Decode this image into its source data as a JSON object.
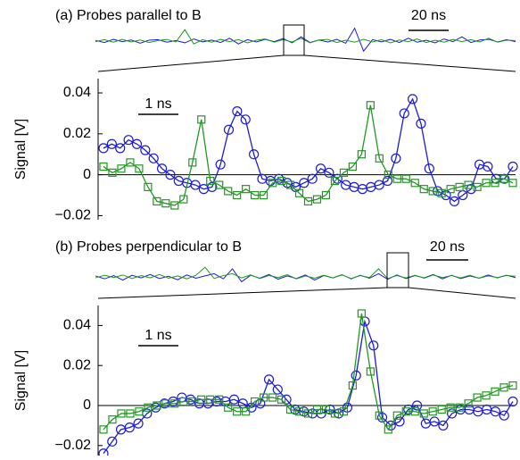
{
  "chart_data": [
    {
      "type": "line",
      "title": "(a) Probes parallel to B",
      "ylabel": "Signal [V]",
      "scale_bar_label": "1 ns",
      "ylim": [
        -0.022,
        0.047
      ],
      "yticks": [
        0.04,
        0.02,
        0,
        {
          "value": -0.02,
          "label": "−0.02"
        }
      ],
      "zero_line": true,
      "series": [
        {
          "color": "#1c1cd4",
          "marker": "circle",
          "values": [
            0.013,
            0.015,
            0.013,
            0.017,
            0.015,
            0.012,
            0.008,
            0.003,
            0.0,
            -0.003,
            -0.004,
            -0.005,
            -0.007,
            -0.006,
            0.005,
            0.022,
            0.031,
            0.027,
            0.01,
            -0.002,
            -0.003,
            -0.002,
            -0.004,
            -0.006,
            -0.004,
            -0.002,
            0.003,
            0.001,
            -0.002,
            -0.005,
            -0.006,
            -0.007,
            -0.006,
            -0.005,
            -0.003,
            0.008,
            0.03,
            0.037,
            0.025,
            0.003,
            -0.008,
            -0.01,
            -0.013,
            -0.01,
            -0.007,
            0.005,
            0.004,
            -0.002,
            -0.002,
            0.004
          ]
        },
        {
          "color": "#1f9a1f",
          "marker": "square",
          "values": [
            0.004,
            0.001,
            0.003,
            0.006,
            0.003,
            -0.006,
            -0.013,
            -0.014,
            -0.015,
            -0.012,
            0.006,
            0.027,
            -0.003,
            -0.005,
            -0.008,
            -0.01,
            -0.007,
            -0.01,
            -0.01,
            -0.004,
            -0.003,
            -0.005,
            -0.009,
            -0.013,
            -0.012,
            -0.01,
            -0.003,
            0.001,
            0.004,
            0.01,
            0.034,
            0.008,
            0.0,
            -0.002,
            -0.002,
            -0.004,
            -0.007,
            -0.008,
            -0.009,
            -0.007,
            -0.006,
            -0.005,
            -0.006,
            -0.004,
            -0.004,
            -0.002,
            -0.004
          ]
        }
      ],
      "overview": {
        "scale_bar_label": "20 ns",
        "ylim": [
          -0.1,
          0.1
        ],
        "series": [
          {
            "color": "#1c1cd4",
            "values": [
              0.005,
              -0.01,
              0.012,
              -0.004,
              0.008,
              -0.015,
              0.006,
              0.01,
              -0.008,
              0.004,
              -0.012,
              0.015,
              -0.005,
              0.007,
              -0.01,
              0.02,
              -0.02,
              0.01,
              -0.006,
              0.012,
              -0.004,
              0.018,
              -0.012,
              0.03,
              -0.01,
              0.008,
              -0.006,
              0.012,
              -0.015,
              0.09,
              -0.07,
              0.01,
              -0.005,
              0.012,
              -0.01,
              0.02,
              -0.008,
              0.006,
              -0.012,
              0.015,
              -0.004,
              0.03,
              -0.01,
              0.008,
              0.012,
              -0.006,
              0.01,
              -0.004
            ]
          },
          {
            "color": "#1f9a1f",
            "values": [
              -0.004,
              0.01,
              -0.008,
              0.012,
              -0.006,
              0.008,
              -0.01,
              0.004,
              0.012,
              -0.006,
              0.08,
              -0.02,
              0.01,
              -0.008,
              0.012,
              -0.004,
              0.01,
              -0.012,
              0.006,
              0.015,
              -0.008,
              0.01,
              -0.006,
              0.02,
              -0.012,
              0.008,
              0.012,
              -0.01,
              0.006,
              -0.008,
              0.012,
              -0.006,
              0.01,
              -0.012,
              0.008,
              -0.004,
              0.015,
              -0.01,
              0.006,
              -0.008,
              0.012,
              -0.004,
              0.01,
              -0.006,
              0.02,
              -0.008,
              0.006,
              0.004
            ]
          }
        ]
      }
    },
    {
      "type": "line",
      "title": "(b) Probes perpendicular to B",
      "ylabel": "Signal [V]",
      "scale_bar_label": "1 ns",
      "ylim": [
        -0.025,
        0.05
      ],
      "yticks": [
        0.04,
        0.02,
        0,
        {
          "value": -0.02,
          "label": "−0.02"
        }
      ],
      "zero_line": true,
      "series": [
        {
          "color": "#1c1cd4",
          "marker": "circle",
          "values": [
            -0.024,
            -0.018,
            -0.012,
            -0.011,
            -0.009,
            -0.004,
            -0.001,
            0.001,
            0.002,
            0.004,
            0.003,
            0.001,
            0.001,
            0.002,
            0.002,
            0.003,
            0.001,
            -0.001,
            0.001,
            0.013,
            0.008,
            0.003,
            -0.002,
            -0.003,
            -0.004,
            -0.004,
            -0.002,
            -0.004,
            -0.001,
            0.015,
            0.042,
            0.03,
            -0.006,
            -0.01,
            -0.008,
            -0.002,
            0.0,
            -0.009,
            -0.008,
            -0.01,
            -0.004,
            -0.002,
            -0.002,
            -0.003,
            -0.002,
            -0.003,
            -0.005,
            0.002
          ]
        },
        {
          "color": "#1f9a1f",
          "marker": "square",
          "values": [
            -0.012,
            -0.007,
            -0.004,
            -0.004,
            -0.003,
            -0.001,
            0.0,
            0.001,
            0.001,
            0.002,
            0.002,
            0.003,
            0.003,
            0.003,
            -0.001,
            -0.003,
            -0.003,
            0.002,
            0.004,
            0.004,
            0.003,
            -0.002,
            -0.003,
            -0.004,
            -0.002,
            -0.002,
            -0.004,
            -0.003,
            0.01,
            0.046,
            0.017,
            -0.005,
            -0.012,
            -0.005,
            -0.003,
            -0.003,
            -0.004,
            -0.003,
            -0.002,
            -0.001,
            -0.001,
            0.001,
            0.004,
            0.005,
            0.007,
            0.009,
            0.01
          ]
        }
      ],
      "overview": {
        "scale_bar_label": "20 ns",
        "ylim": [
          -0.1,
          0.1
        ],
        "series": [
          {
            "color": "#1c1cd4",
            "values": [
              0.006,
              -0.012,
              0.008,
              -0.02,
              0.01,
              -0.006,
              0.015,
              -0.01,
              0.004,
              -0.018,
              0.012,
              -0.008,
              0.006,
              0.02,
              -0.012,
              0.05,
              -0.03,
              0.01,
              -0.008,
              0.015,
              -0.014,
              0.006,
              -0.01,
              0.012,
              -0.02,
              0.008,
              -0.006,
              0.014,
              -0.012,
              0.01,
              -0.008,
              0.02,
              -0.015,
              0.012,
              -0.01,
              0.008,
              -0.006,
              0.015,
              -0.012,
              0.01,
              -0.01,
              0.006,
              -0.008,
              0.012,
              -0.006,
              0.01,
              -0.004
            ]
          },
          {
            "color": "#1f9a1f",
            "values": [
              -0.006,
              0.01,
              -0.004,
              0.012,
              -0.01,
              0.008,
              -0.006,
              0.015,
              -0.008,
              0.006,
              -0.012,
              0.01,
              0.06,
              -0.01,
              0.008,
              0.02,
              -0.006,
              0.012,
              -0.01,
              0.008,
              -0.004,
              0.014,
              -0.012,
              0.006,
              -0.008,
              0.01,
              -0.006,
              0.012,
              -0.01,
              0.008,
              -0.004,
              0.05,
              -0.01,
              0.008,
              -0.006,
              0.01,
              -0.008,
              0.012,
              -0.004,
              0.008,
              -0.006,
              0.01,
              -0.008,
              0.006,
              -0.004,
              0.008,
              0.004
            ]
          }
        ]
      }
    }
  ]
}
